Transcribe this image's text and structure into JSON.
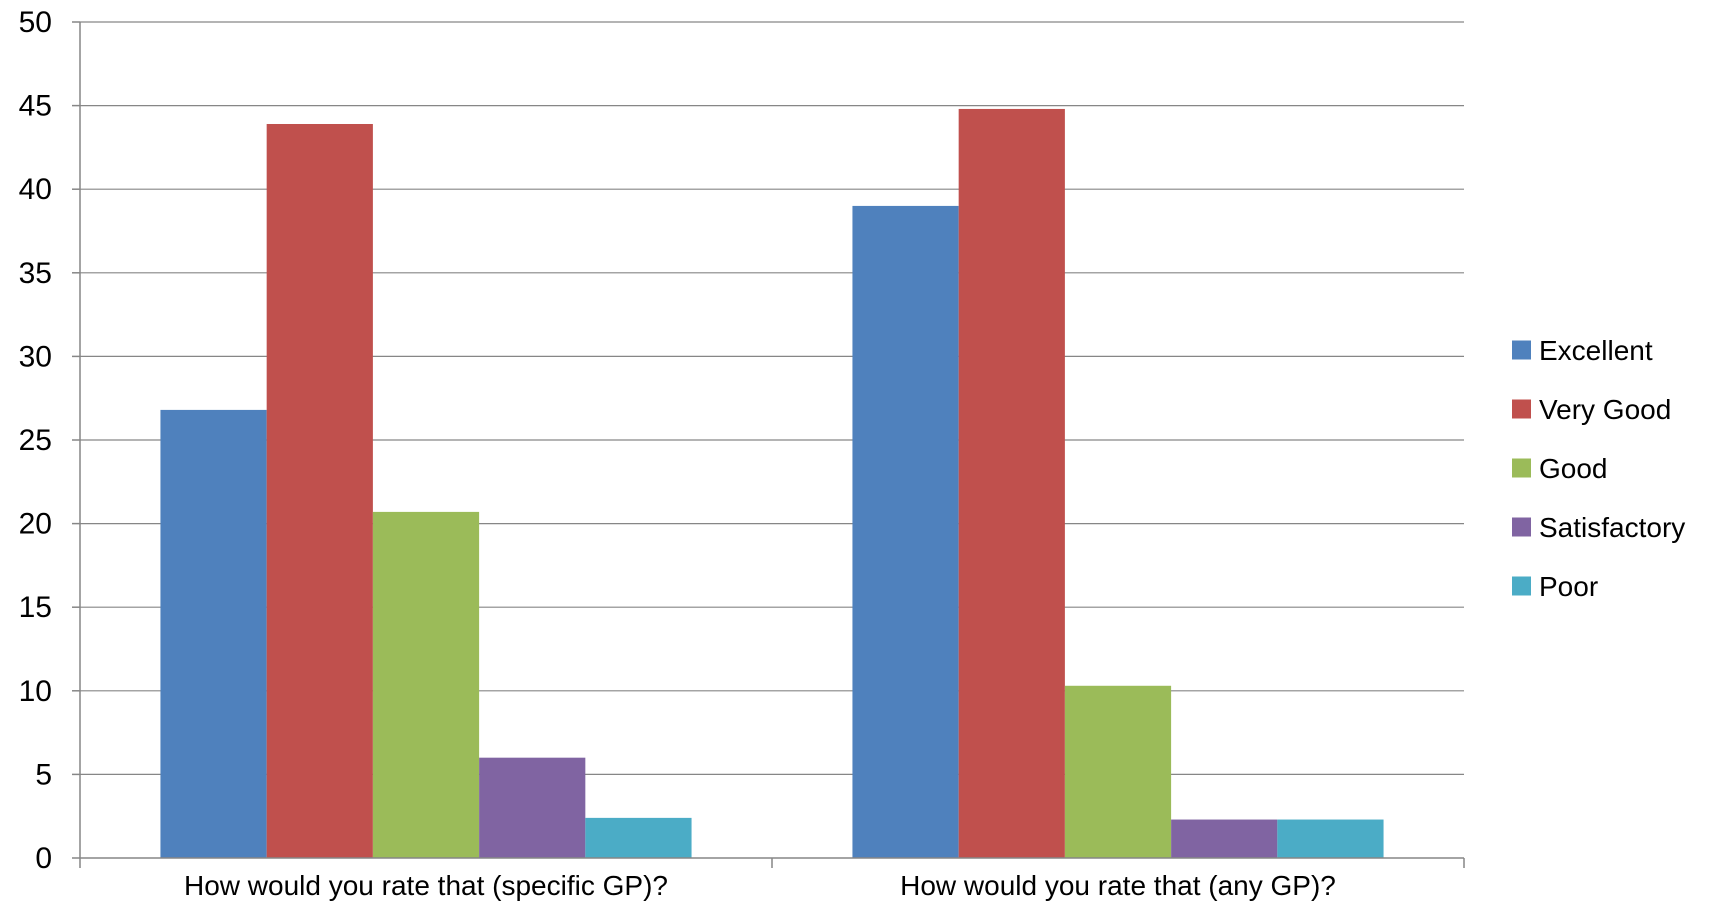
{
  "chart_data": {
    "type": "bar",
    "categories": [
      "How would you rate that (specific GP)?",
      "How would you rate that (any GP)?"
    ],
    "series": [
      {
        "name": "Excellent",
        "values": [
          26.8,
          39.0
        ],
        "color": "#4F81BD"
      },
      {
        "name": "Very Good",
        "values": [
          43.9,
          44.8
        ],
        "color": "#C0504D"
      },
      {
        "name": "Good",
        "values": [
          20.7,
          10.3
        ],
        "color": "#9BBB59"
      },
      {
        "name": "Satisfactory",
        "values": [
          6.0,
          2.3
        ],
        "color": "#8064A2"
      },
      {
        "name": "Poor",
        "values": [
          2.4,
          2.3
        ],
        "color": "#4BACC6"
      }
    ],
    "yticks": [
      "0",
      "5",
      "10",
      "15",
      "20",
      "25",
      "30",
      "35",
      "40",
      "45",
      "50"
    ],
    "ylim": [
      0,
      50
    ],
    "grid": true,
    "legend_position": "right"
  }
}
